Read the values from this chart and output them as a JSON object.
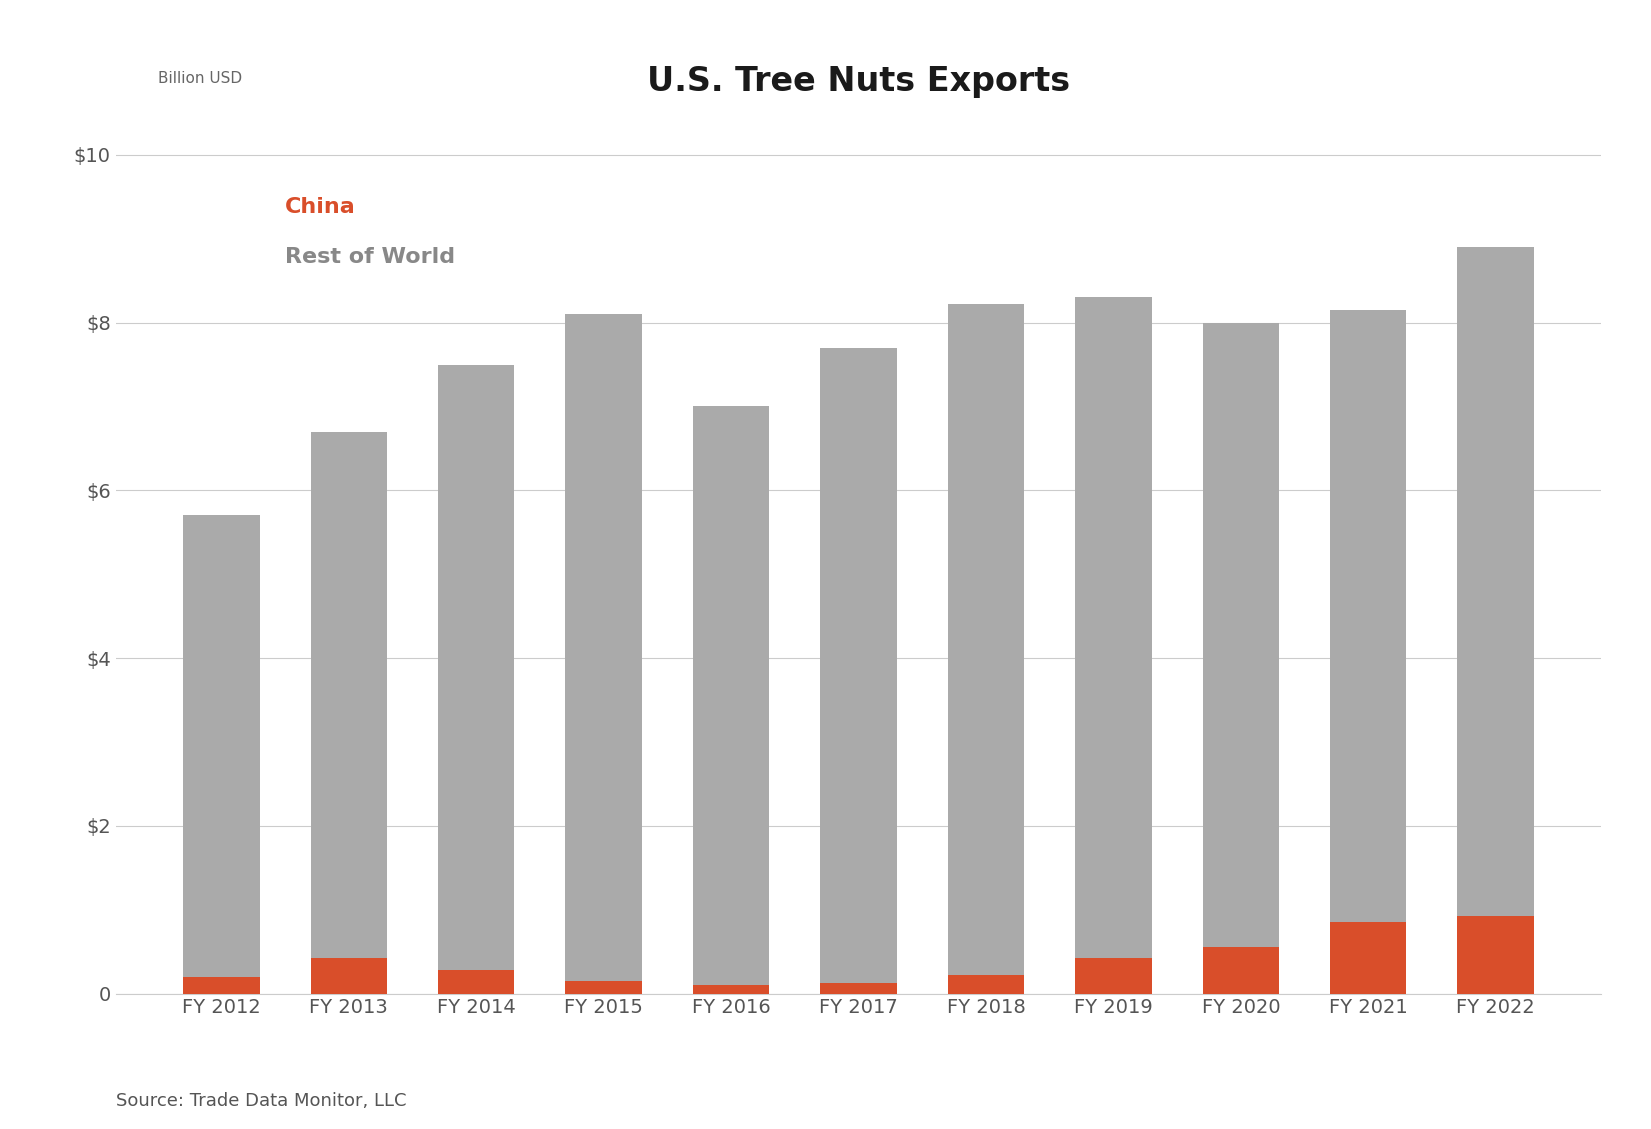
{
  "categories": [
    "FY 2012",
    "FY 2013",
    "FY 2014",
    "FY 2015",
    "FY 2016",
    "FY 2017",
    "FY 2018",
    "FY 2019",
    "FY 2020",
    "FY 2021",
    "FY 2022"
  ],
  "china": [
    0.2,
    0.42,
    0.28,
    0.15,
    0.1,
    0.12,
    0.22,
    0.42,
    0.55,
    0.85,
    0.92
  ],
  "rest_of_world": [
    5.5,
    6.28,
    7.22,
    7.95,
    6.9,
    7.58,
    8.0,
    7.88,
    7.45,
    7.3,
    7.98
  ],
  "china_color": "#d94e2a",
  "row_color": "#aaaaaa",
  "title": "U.S. Tree Nuts Exports",
  "legend_china": "China",
  "legend_row": "Rest of World",
  "ylabel_top": "Billion USD",
  "yticks": [
    0,
    2,
    4,
    6,
    8,
    10
  ],
  "ytick_labels": [
    "0",
    "$2",
    "$4",
    "$6",
    "$8",
    "$10"
  ],
  "source": "Source: Trade Data Monitor, LLC",
  "ylim_max": 10.5,
  "background_color": "#ffffff",
  "title_fontsize": 24,
  "axis_fontsize": 14,
  "legend_fontsize": 16,
  "source_fontsize": 13,
  "bar_width": 0.6
}
